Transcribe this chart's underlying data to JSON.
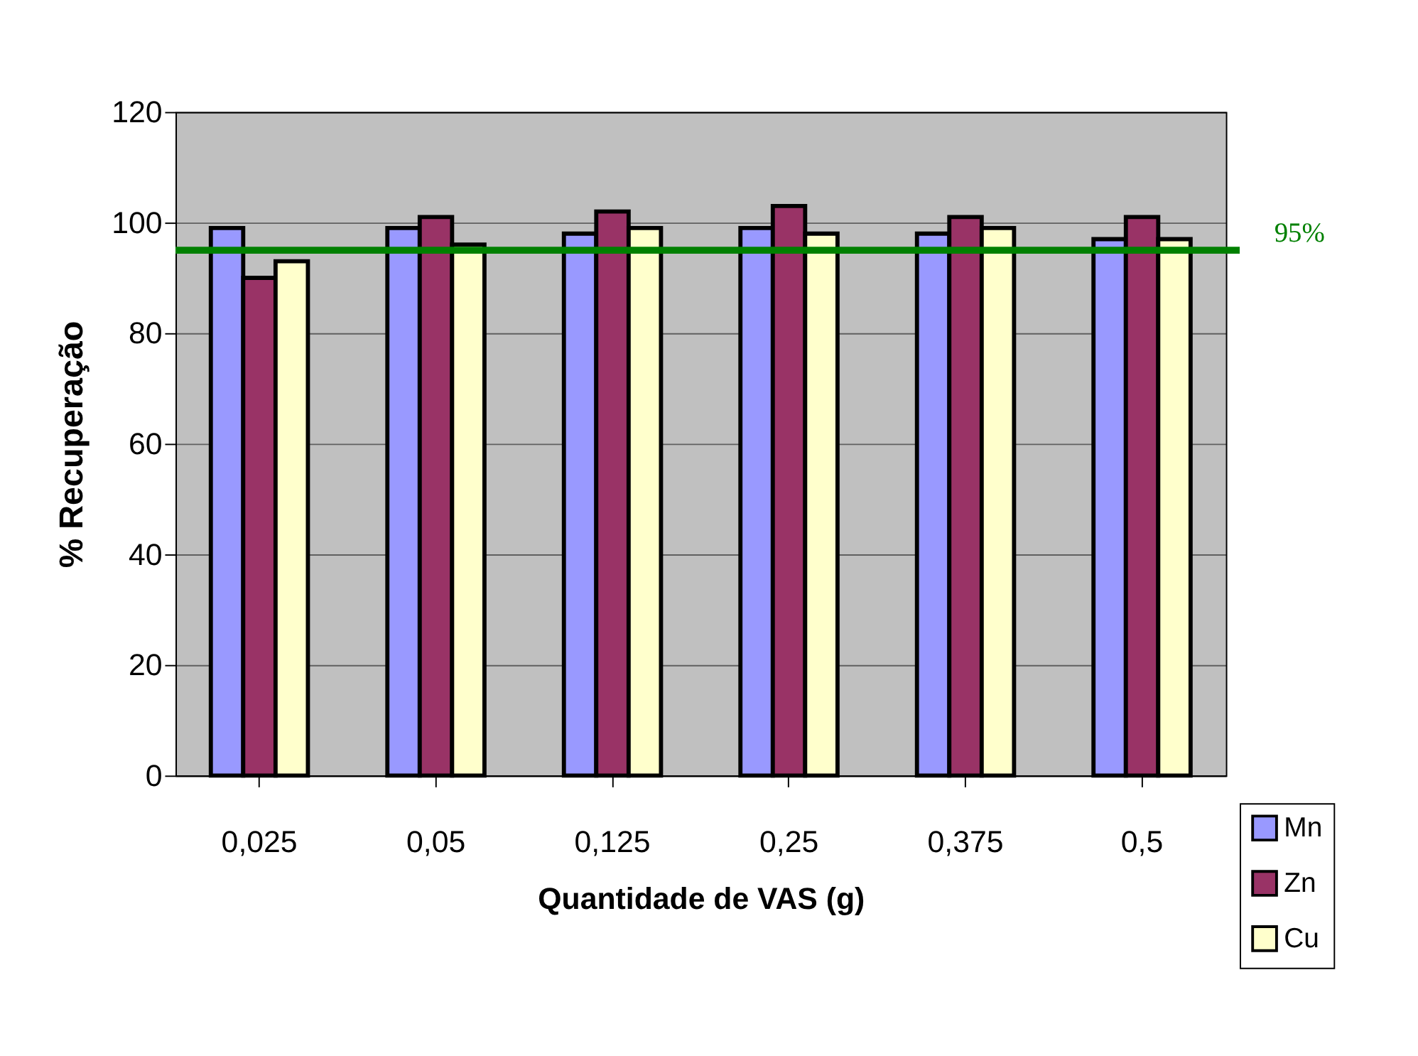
{
  "chart_data": {
    "type": "bar",
    "xlabel": "Quantidade de VAS (g)",
    "ylabel": "% Recuperação",
    "categories": [
      "0,025",
      "0,05",
      "0,125",
      "0,25",
      "0,375",
      "0,5"
    ],
    "series": [
      {
        "name": "Mn",
        "color": "#9999ff",
        "values": [
          99,
          99,
          98,
          99,
          98,
          97
        ]
      },
      {
        "name": "Zn",
        "color": "#993366",
        "values": [
          90,
          101,
          102,
          103,
          101,
          101
        ]
      },
      {
        "name": "Cu",
        "color": "#ffffcc",
        "values": [
          93,
          96,
          99,
          98,
          99,
          97
        ]
      }
    ],
    "ylim": [
      0,
      120
    ],
    "yticks": [
      0,
      20,
      40,
      60,
      80,
      100,
      120
    ],
    "grid": "y",
    "legend": "bottom right",
    "ref_lines": [
      {
        "axis": "y",
        "value": 95,
        "label": "95%",
        "color": "#008000"
      }
    ]
  }
}
